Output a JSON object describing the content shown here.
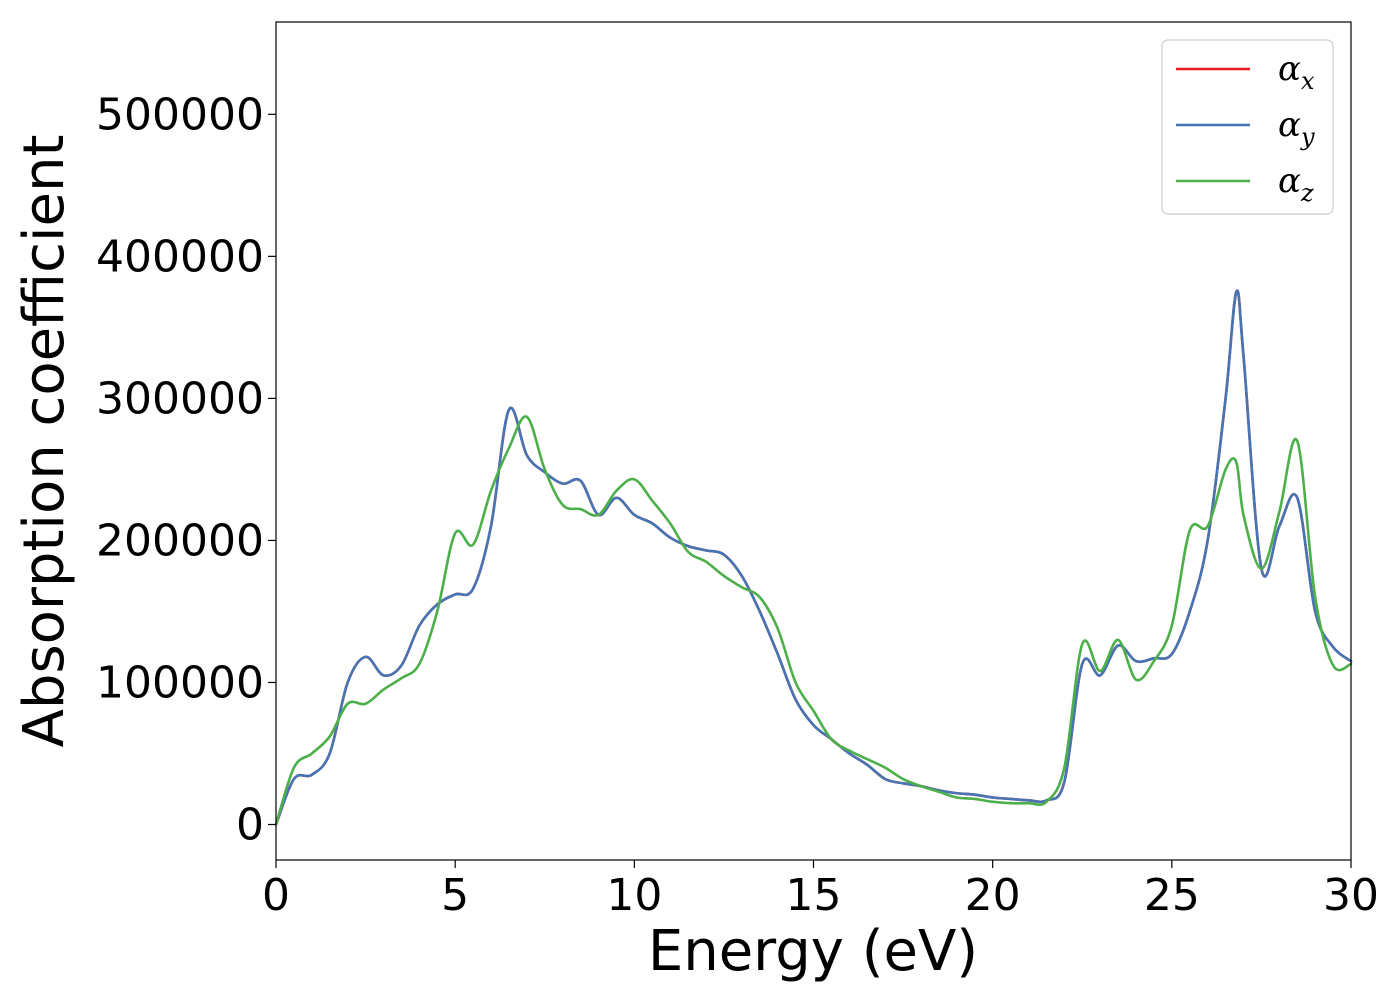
{
  "chart_data": {
    "type": "line",
    "title": "",
    "xlabel": "Energy (eV)",
    "ylabel": "Absorption coefficient",
    "xlim": [
      0,
      30
    ],
    "ylim": [
      -25000,
      565000
    ],
    "xticks": [
      0,
      5,
      10,
      15,
      20,
      25,
      30
    ],
    "xtick_labels": [
      "0",
      "5",
      "10",
      "15",
      "20",
      "25",
      "30"
    ],
    "yticks": [
      0,
      100000,
      200000,
      300000,
      400000,
      500000
    ],
    "ytick_labels": [
      "0",
      "100000",
      "200000",
      "300000",
      "400000",
      "500000"
    ],
    "grid": false,
    "legend_position": "top-right",
    "x": [
      0,
      0.5,
      1,
      1.5,
      2,
      2.5,
      3,
      3.5,
      4,
      4.5,
      5,
      5.5,
      6,
      6.5,
      7,
      7.5,
      8,
      8.5,
      9,
      9.5,
      10,
      10.5,
      11,
      11.5,
      12,
      12.5,
      13,
      13.5,
      14,
      14.5,
      15,
      15.5,
      16,
      16.5,
      17,
      17.5,
      18,
      18.5,
      19,
      19.5,
      20,
      20.5,
      21,
      21.5,
      22,
      22.5,
      23,
      23.5,
      24,
      24.5,
      25,
      25.5,
      26,
      26.5,
      26.8,
      27,
      27.5,
      28,
      28.5,
      29,
      29.5,
      30
    ],
    "series": [
      {
        "name": "α_x",
        "label_main": "α",
        "label_sub": "x",
        "color": "#e41a1c",
        "values": [
          0,
          32000,
          35000,
          50000,
          100000,
          118000,
          105000,
          112000,
          140000,
          155000,
          162000,
          166000,
          210000,
          292000,
          260000,
          248000,
          240000,
          242000,
          218000,
          230000,
          218000,
          212000,
          202000,
          196000,
          193000,
          190000,
          175000,
          150000,
          120000,
          88000,
          70000,
          60000,
          50000,
          42000,
          32000,
          29000,
          27000,
          24000,
          22000,
          21000,
          19000,
          18000,
          17000,
          17000,
          30000,
          113000,
          105000,
          126000,
          115000,
          117000,
          120000,
          150000,
          200000,
          300000,
          375000,
          330000,
          180000,
          210000,
          230000,
          150000,
          125000,
          115000
        ]
      },
      {
        "name": "α_y",
        "label_main": "α",
        "label_sub": "y",
        "color": "#4575b4",
        "values": [
          0,
          32000,
          35000,
          50000,
          100000,
          118000,
          105000,
          112000,
          140000,
          155000,
          162000,
          166000,
          210000,
          292000,
          260000,
          248000,
          240000,
          242000,
          218000,
          230000,
          218000,
          212000,
          202000,
          196000,
          193000,
          190000,
          175000,
          150000,
          120000,
          88000,
          70000,
          60000,
          50000,
          42000,
          32000,
          29000,
          27000,
          24000,
          22000,
          21000,
          19000,
          18000,
          17000,
          17000,
          30000,
          113000,
          105000,
          126000,
          115000,
          117000,
          120000,
          150000,
          200000,
          300000,
          375000,
          330000,
          180000,
          210000,
          230000,
          150000,
          125000,
          115000
        ]
      },
      {
        "name": "α_z",
        "label_main": "α",
        "label_sub": "z",
        "color": "#4daf4a",
        "values": [
          0,
          40000,
          50000,
          62000,
          85000,
          85000,
          95000,
          103000,
          113000,
          150000,
          205000,
          197000,
          235000,
          265000,
          287000,
          250000,
          225000,
          222000,
          218000,
          235000,
          243000,
          228000,
          212000,
          192000,
          185000,
          175000,
          167000,
          160000,
          138000,
          100000,
          80000,
          60000,
          52000,
          46000,
          40000,
          32000,
          27000,
          23000,
          19000,
          18000,
          16000,
          15000,
          15000,
          16000,
          40000,
          127000,
          108000,
          130000,
          102000,
          115000,
          140000,
          207000,
          210000,
          250000,
          255000,
          218000,
          180000,
          220000,
          270000,
          160000,
          112000,
          113000
        ]
      }
    ]
  }
}
